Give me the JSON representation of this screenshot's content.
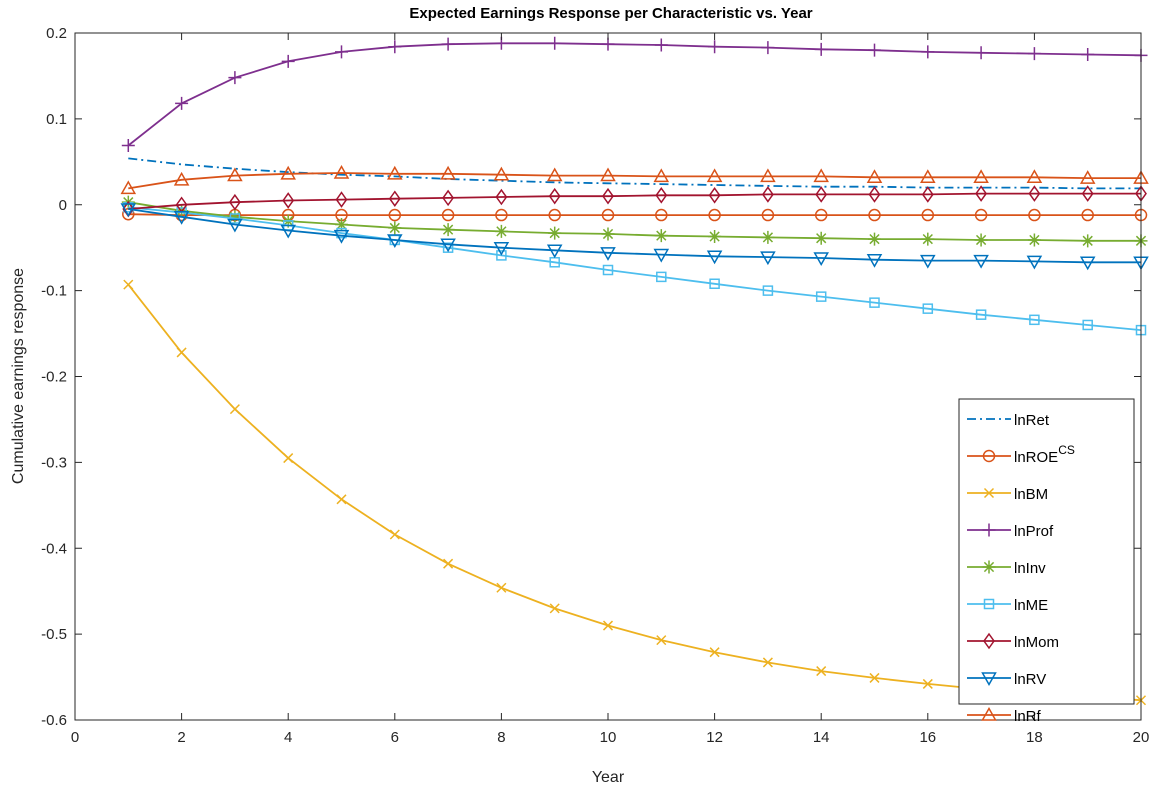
{
  "chart_data": {
    "type": "line",
    "title": "Expected Earnings Response per Characteristic vs. Year",
    "xlabel": "Year",
    "ylabel": "Cumulative earnings response",
    "xlim": [
      0,
      20
    ],
    "ylim": [
      -0.6,
      0.2
    ],
    "xticks": [
      0,
      2,
      4,
      6,
      8,
      10,
      12,
      14,
      16,
      18,
      20
    ],
    "yticks": [
      -0.6,
      -0.5,
      -0.4,
      -0.3,
      -0.2,
      -0.1,
      0,
      0.1,
      0.2
    ],
    "xtick_labels": [
      "0",
      "2",
      "4",
      "6",
      "8",
      "10",
      "12",
      "14",
      "16",
      "18",
      "20"
    ],
    "ytick_labels": [
      "-0.6",
      "-0.5",
      "-0.4",
      "-0.3",
      "-0.2",
      "-0.1",
      "0",
      "0.1",
      "0.2"
    ],
    "grid": false,
    "legend_position": "bottom-right",
    "x": [
      1,
      2,
      3,
      4,
      5,
      6,
      7,
      8,
      9,
      10,
      11,
      12,
      13,
      14,
      15,
      16,
      17,
      18,
      19,
      20
    ],
    "series": [
      {
        "name": "lnRet",
        "sup": "",
        "color": "#0072BD",
        "marker": "none",
        "dash": "dashdot",
        "values": [
          0.054,
          0.047,
          0.042,
          0.038,
          0.035,
          0.033,
          0.03,
          0.028,
          0.026,
          0.025,
          0.024,
          0.023,
          0.022,
          0.021,
          0.021,
          0.02,
          0.02,
          0.02,
          0.019,
          0.019
        ]
      },
      {
        "name": "lnROE",
        "sup": "CS",
        "color": "#D95319",
        "marker": "circle",
        "dash": "solid",
        "values": [
          -0.011,
          -0.012,
          -0.012,
          -0.012,
          -0.012,
          -0.012,
          -0.012,
          -0.012,
          -0.012,
          -0.012,
          -0.012,
          -0.012,
          -0.012,
          -0.012,
          -0.012,
          -0.012,
          -0.012,
          -0.012,
          -0.012,
          -0.012
        ]
      },
      {
        "name": "lnBM",
        "sup": "",
        "color": "#EDB120",
        "marker": "x",
        "dash": "solid",
        "values": [
          -0.093,
          -0.172,
          -0.238,
          -0.295,
          -0.343,
          -0.384,
          -0.418,
          -0.446,
          -0.47,
          -0.49,
          -0.507,
          -0.521,
          -0.533,
          -0.543,
          -0.551,
          -0.558,
          -0.564,
          -0.569,
          -0.573,
          -0.577
        ]
      },
      {
        "name": "lnProf",
        "sup": "",
        "color": "#7E2F8E",
        "marker": "plus",
        "dash": "solid",
        "values": [
          0.069,
          0.118,
          0.148,
          0.167,
          0.178,
          0.184,
          0.187,
          0.188,
          0.188,
          0.187,
          0.186,
          0.184,
          0.183,
          0.181,
          0.18,
          0.178,
          0.177,
          0.176,
          0.175,
          0.174
        ]
      },
      {
        "name": "lnInv",
        "sup": "",
        "color": "#77AC30",
        "marker": "asterisk",
        "dash": "solid",
        "values": [
          0.003,
          -0.007,
          -0.014,
          -0.019,
          -0.023,
          -0.027,
          -0.029,
          -0.031,
          -0.033,
          -0.034,
          -0.036,
          -0.037,
          -0.038,
          -0.039,
          -0.04,
          -0.04,
          -0.041,
          -0.041,
          -0.042,
          -0.042
        ]
      },
      {
        "name": "lnME",
        "sup": "",
        "color": "#4DBEEE",
        "marker": "square",
        "dash": "solid",
        "values": [
          -0.003,
          -0.009,
          -0.016,
          -0.024,
          -0.033,
          -0.041,
          -0.05,
          -0.059,
          -0.067,
          -0.076,
          -0.084,
          -0.092,
          -0.1,
          -0.107,
          -0.114,
          -0.121,
          -0.128,
          -0.134,
          -0.14,
          -0.146
        ]
      },
      {
        "name": "lnMom",
        "sup": "",
        "color": "#A2142F",
        "marker": "diamond",
        "dash": "solid",
        "values": [
          -0.005,
          0.0,
          0.003,
          0.005,
          0.006,
          0.007,
          0.008,
          0.009,
          0.01,
          0.01,
          0.011,
          0.011,
          0.012,
          0.012,
          0.012,
          0.012,
          0.013,
          0.013,
          0.013,
          0.013
        ]
      },
      {
        "name": "lnRV",
        "sup": "",
        "color": "#0072BD",
        "marker": "triangle-down",
        "dash": "solid",
        "values": [
          -0.005,
          -0.014,
          -0.023,
          -0.03,
          -0.036,
          -0.041,
          -0.046,
          -0.05,
          -0.053,
          -0.056,
          -0.058,
          -0.06,
          -0.061,
          -0.062,
          -0.064,
          -0.065,
          -0.065,
          -0.066,
          -0.067,
          -0.067
        ]
      },
      {
        "name": "lnRf",
        "sup": "",
        "color": "#D95319",
        "marker": "triangle-up",
        "dash": "solid",
        "values": [
          0.019,
          0.029,
          0.034,
          0.036,
          0.037,
          0.036,
          0.036,
          0.035,
          0.034,
          0.034,
          0.033,
          0.033,
          0.033,
          0.033,
          0.032,
          0.032,
          0.032,
          0.032,
          0.031,
          0.031
        ]
      }
    ]
  }
}
